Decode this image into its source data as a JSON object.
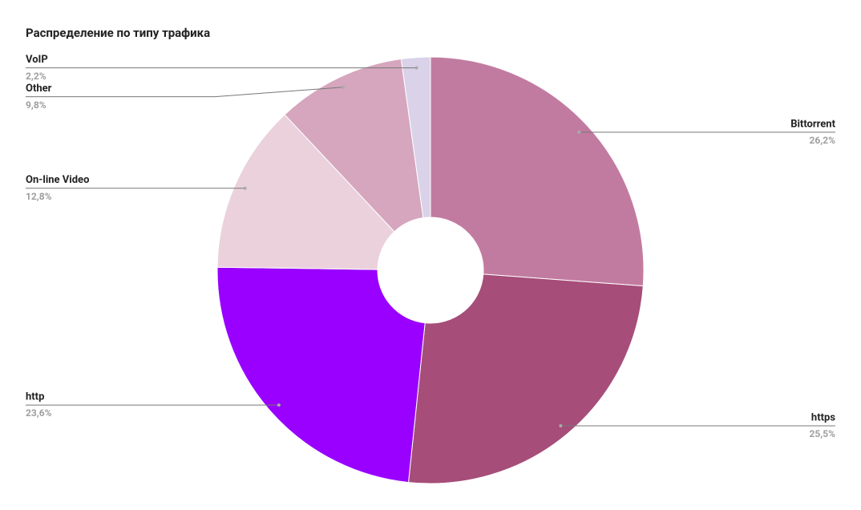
{
  "chart_data": {
    "type": "pie",
    "title": "Распределение по типу трафика",
    "categories": [
      "Bittorrent",
      "https",
      "http",
      "On-line Video",
      "Other",
      "VoIP"
    ],
    "values": [
      26.2,
      25.5,
      23.6,
      12.8,
      9.8,
      2.2
    ],
    "value_labels": [
      "26,2%",
      "25,5%",
      "23,6%",
      "12,8%",
      "9,8%",
      "2,2%"
    ],
    "colors": [
      "#c27ba0",
      "#a64d79",
      "#9900ff",
      "#ead1dc",
      "#d5a6bd",
      "#d9d2e9"
    ]
  }
}
